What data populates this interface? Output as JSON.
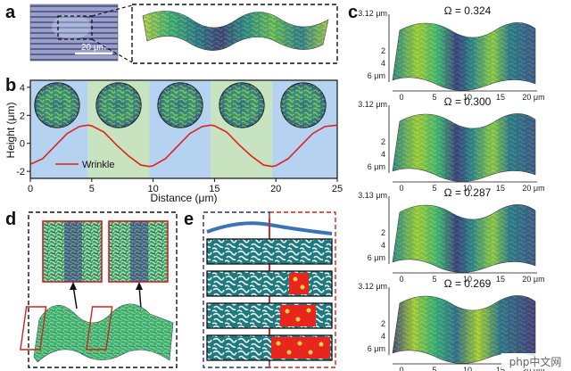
{
  "panels": {
    "a": {
      "label": "a",
      "scalebar": "20 μm"
    },
    "b": {
      "label": "b",
      "ylabel": "Height (μm)",
      "xlabel": "Distance (μm)",
      "legend": "Wrinkle",
      "x_ticks": [
        "0",
        "5",
        "10",
        "15",
        "20",
        "25"
      ],
      "y_ticks": [
        "4",
        "2",
        "0",
        "-2"
      ]
    },
    "c": {
      "label": "c",
      "plots": [
        {
          "omega": "Ω = 0.324",
          "ztop": "3.12 μm",
          "x_ticks": [
            "0",
            "5",
            "10",
            "15",
            "20 μm"
          ],
          "y_ticks": [
            "2",
            "4",
            "6 μm"
          ]
        },
        {
          "omega": "Ω = 0.300",
          "ztop": "3.12 μm",
          "x_ticks": [
            "0",
            "5",
            "10",
            "15",
            "20 μm"
          ],
          "y_ticks": [
            "2",
            "4",
            "6 μm"
          ]
        },
        {
          "omega": "Ω = 0.287",
          "ztop": "3.13 μm",
          "x_ticks": [
            "0",
            "5",
            "10",
            "15",
            "20 μm"
          ],
          "y_ticks": [
            "2",
            "4",
            "6 μm"
          ]
        },
        {
          "omega": "Ω = 0.269",
          "ztop": "3.12 μm",
          "x_ticks": [
            "0",
            "5",
            "10",
            "15",
            "20 μm"
          ],
          "y_ticks": [
            "2",
            "4",
            "6 μm"
          ]
        }
      ]
    },
    "d": {
      "label": "d"
    },
    "e": {
      "label": "e"
    }
  },
  "watermark": "php中文网",
  "chart_data": {
    "type": "line",
    "title": "",
    "xlabel": "Distance (μm)",
    "ylabel": "Height (μm)",
    "xlim": [
      0,
      25
    ],
    "ylim": [
      -2.5,
      4.5
    ],
    "series": [
      {
        "name": "Wrinkle",
        "color": "#e0201c",
        "x": [
          0,
          1,
          2,
          3,
          4,
          4.7,
          5,
          6,
          7,
          8,
          9,
          9.7,
          10,
          11,
          12,
          13,
          14,
          14.7,
          15,
          16,
          17,
          18,
          19,
          19.7,
          20,
          21,
          22,
          23,
          24,
          25
        ],
        "y": [
          -1.5,
          -1.1,
          -0.2,
          0.7,
          1.2,
          1.3,
          1.25,
          0.8,
          -0.1,
          -0.9,
          -1.55,
          -1.65,
          -1.6,
          -1.1,
          -0.2,
          0.7,
          1.2,
          1.3,
          1.25,
          0.8,
          -0.1,
          -0.9,
          -1.55,
          -1.65,
          -1.6,
          -1.1,
          -0.2,
          0.7,
          1.2,
          1.3
        ]
      }
    ],
    "bands": [
      {
        "from": 0,
        "to": 4.7,
        "color": "#b5d3f0"
      },
      {
        "from": 4.7,
        "to": 9.7,
        "color": "#c8e3bf"
      },
      {
        "from": 9.7,
        "to": 14.7,
        "color": "#b5d3f0"
      },
      {
        "from": 14.7,
        "to": 19.7,
        "color": "#c8e3bf"
      },
      {
        "from": 19.7,
        "to": 25,
        "color": "#b5d3f0"
      }
    ]
  }
}
